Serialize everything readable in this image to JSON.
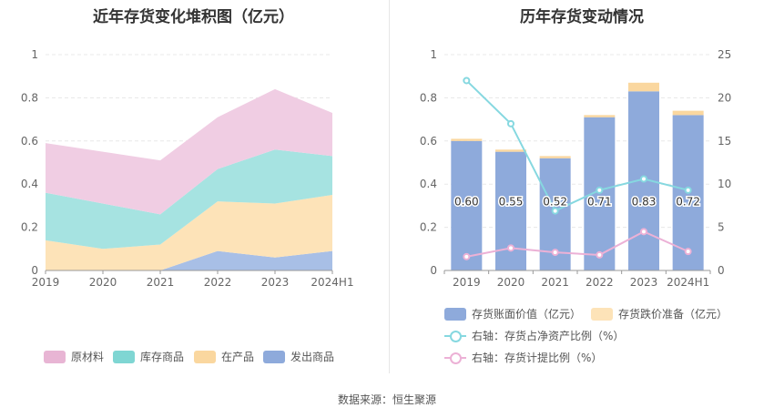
{
  "titles": {
    "left": "近年存货变化堆积图（亿元）",
    "right": "历年存货变动情况"
  },
  "source": "数据来源：恒生聚源",
  "chart_data": [
    {
      "type": "area",
      "stacked": true,
      "title": "近年存货变化堆积图（亿元）",
      "categories": [
        "2019",
        "2020",
        "2021",
        "2022",
        "2023",
        "2024H1"
      ],
      "ylim": [
        0,
        1
      ],
      "yticks": [
        "0",
        "0.2",
        "0.4",
        "0.6",
        "0.8",
        "1"
      ],
      "grid": true,
      "legend_position": "bottom",
      "series": [
        {
          "name": "发出商品",
          "color": "#a8bfe6",
          "legend_color": "#8eaadb",
          "values": [
            0.0,
            0.0,
            0.0,
            0.09,
            0.06,
            0.09
          ]
        },
        {
          "name": "在产品",
          "color": "#fde3b8",
          "legend_color": "#fad79f",
          "values": [
            0.14,
            0.1,
            0.12,
            0.23,
            0.25,
            0.26
          ]
        },
        {
          "name": "库存商品",
          "color": "#a6e3e1",
          "legend_color": "#7fd6d3",
          "values": [
            0.22,
            0.21,
            0.14,
            0.15,
            0.25,
            0.18
          ]
        },
        {
          "name": "原材料",
          "color": "#f0cde3",
          "legend_color": "#e8b5d4",
          "values": [
            0.23,
            0.24,
            0.25,
            0.24,
            0.28,
            0.2
          ]
        }
      ],
      "legend_order": [
        "原材料",
        "库存商品",
        "在产品",
        "发出商品"
      ]
    },
    {
      "type": "bar",
      "title": "历年存货变动情况",
      "categories": [
        "2019",
        "2020",
        "2021",
        "2022",
        "2023",
        "2024H1"
      ],
      "ylim_left": [
        0,
        1
      ],
      "yticks_left": [
        "0",
        "0.2",
        "0.4",
        "0.6",
        "0.8",
        "1"
      ],
      "ylim_right": [
        0,
        25
      ],
      "yticks_right": [
        "0",
        "5",
        "10",
        "15",
        "20",
        "25"
      ],
      "legend_position": "bottom",
      "bars": [
        {
          "name": "存货账面价值（亿元）",
          "color": "#8eaadb",
          "values": [
            0.6,
            0.55,
            0.52,
            0.71,
            0.83,
            0.72
          ],
          "labels": [
            "0.60",
            "0.55",
            "0.52",
            "0.71",
            "0.83",
            "0.72"
          ]
        },
        {
          "name": "存货跌价准备（亿元）",
          "color": "#fad79f",
          "values": [
            0.01,
            0.01,
            0.01,
            0.01,
            0.04,
            0.02
          ]
        }
      ],
      "lines": [
        {
          "name": "右轴：存货占净资产比例（%）",
          "color": "#86d8e0",
          "axis": "right",
          "values": [
            22.0,
            17.0,
            6.9,
            9.3,
            10.6,
            9.3
          ]
        },
        {
          "name": "右轴：存货计提比例（%）",
          "color": "#ecb1d6",
          "axis": "right",
          "values": [
            1.6,
            2.6,
            2.1,
            1.8,
            4.5,
            2.2
          ]
        }
      ]
    }
  ]
}
